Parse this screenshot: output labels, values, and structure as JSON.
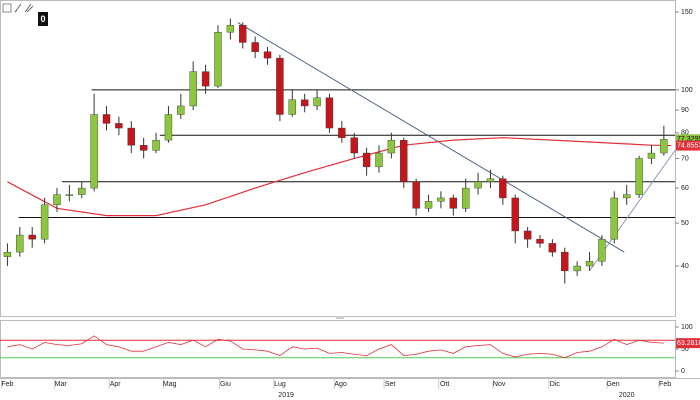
{
  "toolbar": {
    "badge": "0"
  },
  "chart_data": {
    "type": "candlestick",
    "up_color": "#8cc63f",
    "down_color": "#c4161c",
    "wick_color": "#333333",
    "x": [
      0,
      1,
      2,
      3,
      4,
      5,
      6,
      7,
      8,
      9,
      10,
      11,
      12,
      13,
      14,
      15,
      16,
      17,
      18,
      19,
      20,
      21,
      22,
      23,
      24,
      25,
      26,
      27,
      28,
      29,
      30,
      31,
      32,
      33,
      34,
      35,
      36,
      37,
      38,
      39,
      40,
      41,
      42,
      43,
      44,
      45,
      46,
      47,
      48,
      49,
      50,
      51,
      52,
      53
    ],
    "open": [
      42,
      43,
      47,
      46,
      55,
      58,
      58,
      60,
      88,
      84,
      82,
      75,
      73,
      77,
      88,
      92,
      110,
      102,
      135,
      140,
      128,
      122,
      118,
      88,
      95,
      92,
      96,
      82,
      78,
      72,
      67,
      72,
      77,
      62,
      54,
      56,
      57,
      54,
      60,
      62,
      63,
      57,
      48,
      46,
      45,
      43,
      39,
      40,
      41,
      46,
      57,
      58,
      70,
      72
    ],
    "high": [
      45,
      49,
      49,
      57,
      60,
      61,
      62,
      98,
      92,
      87,
      85,
      78,
      80,
      92,
      98,
      116,
      114,
      140,
      145,
      142,
      132,
      125,
      120,
      100,
      98,
      100,
      98,
      85,
      80,
      74,
      75,
      80,
      78,
      63,
      58,
      59,
      58,
      63,
      65,
      66,
      64,
      58,
      49,
      47,
      46,
      44,
      41,
      43,
      47,
      59,
      61,
      71,
      75,
      83
    ],
    "low": [
      40,
      42,
      44,
      45,
      53,
      56,
      57,
      59,
      81,
      79,
      72,
      70,
      72,
      76,
      86,
      90,
      98,
      101,
      130,
      124,
      118,
      114,
      85,
      87,
      89,
      90,
      80,
      76,
      70,
      64,
      65,
      70,
      60,
      52,
      53,
      54,
      52,
      53,
      58,
      60,
      55,
      45,
      44,
      44,
      42,
      36.5,
      38,
      39,
      40,
      45,
      55,
      57,
      68,
      71
    ],
    "close": [
      43,
      47,
      46,
      55,
      58,
      58,
      60,
      88,
      84,
      82,
      75,
      73,
      77,
      88,
      92,
      110,
      102,
      135,
      140,
      128,
      122,
      118,
      88,
      95,
      92,
      96,
      82,
      78,
      72,
      67,
      72,
      77,
      62,
      54,
      56,
      57,
      54,
      60,
      62,
      63,
      57,
      48,
      46,
      45,
      43,
      39,
      40,
      41,
      46,
      57,
      58,
      70,
      72,
      77.3295
    ],
    "close_labels": [
      null,
      null,
      null,
      null,
      null,
      null,
      null,
      null,
      null,
      null,
      null,
      null,
      null,
      null,
      null,
      null,
      null,
      null,
      null,
      null,
      null,
      null,
      null,
      null,
      null,
      null,
      null,
      null,
      null,
      null,
      null,
      null,
      null,
      null,
      null,
      null,
      null,
      null,
      null,
      null,
      null,
      null,
      null,
      null,
      null,
      null,
      null,
      null,
      null,
      null,
      null,
      null,
      null,
      "77.3295"
    ],
    "ma": {
      "color": "#e0303a",
      "x": [
        0,
        4,
        8,
        12,
        16,
        20,
        24,
        28,
        32,
        36,
        40,
        44,
        48,
        52,
        53.6
      ],
      "values": [
        62,
        54,
        52,
        52,
        55,
        60,
        65,
        70,
        75,
        77,
        78,
        77,
        76,
        75,
        74.8553
      ],
      "value_labels": [
        null,
        null,
        null,
        null,
        null,
        null,
        null,
        null,
        null,
        null,
        null,
        null,
        null,
        null,
        "74.8553"
      ]
    },
    "lines": [
      {
        "color": "#111111",
        "x": [
          6.8,
          53.9
        ],
        "y": [
          100,
          100
        ]
      },
      {
        "color": "#111111",
        "x": [
          12.3,
          53.9
        ],
        "y": [
          79,
          79
        ]
      },
      {
        "color": "#111111",
        "x": [
          4.4,
          53.9
        ],
        "y": [
          62,
          62
        ]
      },
      {
        "color": "#111111",
        "x": [
          0.9,
          53.9
        ],
        "y": [
          51.5,
          51.5
        ]
      },
      {
        "color": "#4a6584",
        "x": [
          18.6,
          49.8
        ],
        "y": [
          142,
          43
        ]
      },
      {
        "color": "#8a9ab0",
        "x": [
          47,
          53.9
        ],
        "y": [
          39,
          73
        ]
      }
    ],
    "log_scale": true,
    "xlim": [
      -0.6,
      53.9
    ],
    "ylim": [
      31,
      158
    ],
    "yticks": [
      40,
      50,
      60,
      70,
      80,
      90,
      100,
      150
    ],
    "xticks": [
      {
        "value": 0,
        "label": "Feb"
      },
      {
        "value": 4.3,
        "label": "Mar"
      },
      {
        "value": 8.7,
        "label": "Apr"
      },
      {
        "value": 13.1,
        "label": "Mag"
      },
      {
        "value": 17.6,
        "label": "Giu"
      },
      {
        "value": 22,
        "label": "Lug"
      },
      {
        "value": 26.9,
        "label": "Ago"
      },
      {
        "value": 30.9,
        "label": "Set"
      },
      {
        "value": 35.3,
        "label": "Ott"
      },
      {
        "value": 39.7,
        "label": "Nov"
      },
      {
        "value": 44.2,
        "label": "Dic"
      },
      {
        "value": 48.9,
        "label": "Gen"
      },
      {
        "value": 53.1,
        "label": "Feb"
      }
    ],
    "year_ticks": [
      {
        "value": 22.5,
        "label": "2019"
      },
      {
        "value": 50,
        "label": "2020"
      }
    ],
    "rsi": {
      "color": "#e0303a",
      "ylim": [
        0,
        100
      ],
      "yticks": [
        0,
        50,
        100
      ],
      "levels": [
        70,
        30
      ],
      "level_colors": [
        "#e0303a",
        "#55cc55"
      ],
      "values": [
        55,
        60,
        50,
        65,
        60,
        58,
        62,
        80,
        60,
        55,
        45,
        45,
        55,
        65,
        60,
        70,
        55,
        72,
        68,
        50,
        48,
        45,
        35,
        55,
        50,
        52,
        40,
        42,
        38,
        35,
        50,
        60,
        35,
        38,
        45,
        48,
        40,
        55,
        58,
        60,
        40,
        32,
        38,
        40,
        38,
        30,
        42,
        45,
        55,
        72,
        60,
        70,
        65,
        63.2816
      ],
      "value_labels": [
        null,
        null,
        null,
        null,
        null,
        null,
        null,
        null,
        null,
        null,
        null,
        null,
        null,
        null,
        null,
        null,
        null,
        null,
        null,
        null,
        null,
        null,
        null,
        null,
        null,
        null,
        null,
        null,
        null,
        null,
        null,
        null,
        null,
        null,
        null,
        null,
        null,
        null,
        null,
        null,
        null,
        null,
        null,
        null,
        null,
        null,
        null,
        null,
        null,
        null,
        null,
        null,
        null,
        "63.2816"
      ]
    }
  }
}
